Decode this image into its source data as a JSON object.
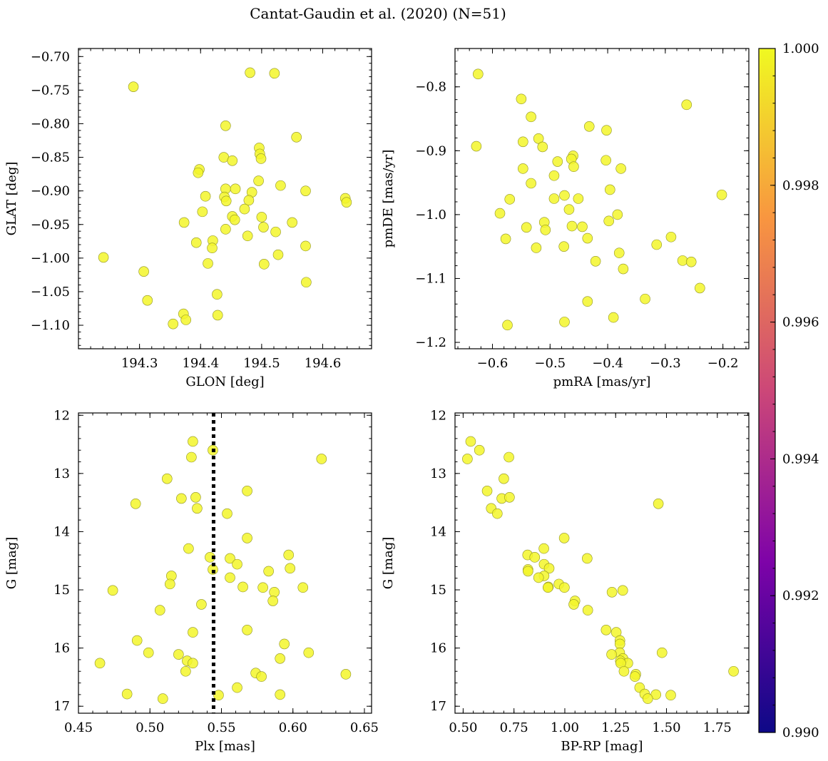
{
  "figure": {
    "title": "Cantat-Gaudin et al. (2020) (N=51)"
  },
  "colorbar": {
    "range": [
      0.99,
      1.0
    ],
    "ticks": [
      0.99,
      0.992,
      0.994,
      0.996,
      0.998,
      1.0
    ],
    "tick_labels": [
      "0.990",
      "0.992",
      "0.994",
      "0.996",
      "0.998",
      "1.000"
    ],
    "colormap": [
      "#0d0887",
      "#7e03a8",
      "#cc4778",
      "#f89540",
      "#f0f921"
    ],
    "point_color": "#f3f62a"
  },
  "chart_data": [
    {
      "type": "scatter",
      "xlabel": "GLON [deg]",
      "ylabel": "GLAT [deg]",
      "xlim": [
        194.2,
        194.68
      ],
      "ylim": [
        -1.135,
        -0.688
      ],
      "xticks": [
        194.3,
        194.4,
        194.5,
        194.6
      ],
      "xtick_labels": [
        "194.3",
        "194.4",
        "194.5",
        "194.6"
      ],
      "yticks": [
        -0.7,
        -0.75,
        -0.8,
        -0.85,
        -0.9,
        -0.95,
        -1.0,
        -1.05,
        -1.1
      ],
      "ytick_labels": [
        "−0.70",
        "−0.75",
        "−0.80",
        "−0.85",
        "−0.90",
        "−0.95",
        "−1.00",
        "−1.05",
        "−1.10"
      ],
      "points": [
        [
          194.481,
          -0.724
        ],
        [
          194.521,
          -0.725
        ],
        [
          194.29,
          -0.745
        ],
        [
          194.441,
          -0.803
        ],
        [
          194.557,
          -0.82
        ],
        [
          194.496,
          -0.836
        ],
        [
          194.497,
          -0.845
        ],
        [
          194.438,
          -0.85
        ],
        [
          194.499,
          -0.852
        ],
        [
          194.452,
          -0.855
        ],
        [
          194.398,
          -0.868
        ],
        [
          194.396,
          -0.873
        ],
        [
          194.531,
          -0.892
        ],
        [
          194.495,
          -0.885
        ],
        [
          194.441,
          -0.897
        ],
        [
          194.457,
          -0.897
        ],
        [
          194.572,
          -0.9
        ],
        [
          194.484,
          -0.902
        ],
        [
          194.408,
          -0.908
        ],
        [
          194.439,
          -0.909
        ],
        [
          194.637,
          -0.911
        ],
        [
          194.479,
          -0.914
        ],
        [
          194.442,
          -0.915
        ],
        [
          194.639,
          -0.917
        ],
        [
          194.472,
          -0.927
        ],
        [
          194.403,
          -0.931
        ],
        [
          194.452,
          -0.938
        ],
        [
          194.5,
          -0.939
        ],
        [
          194.456,
          -0.943
        ],
        [
          194.373,
          -0.947
        ],
        [
          194.55,
          -0.947
        ],
        [
          194.503,
          -0.954
        ],
        [
          194.441,
          -0.957
        ],
        [
          194.523,
          -0.961
        ],
        [
          194.477,
          -0.967
        ],
        [
          194.42,
          -0.974
        ],
        [
          194.393,
          -0.977
        ],
        [
          194.572,
          -0.982
        ],
        [
          194.419,
          -0.985
        ],
        [
          194.241,
          -0.999
        ],
        [
          194.527,
          -0.995
        ],
        [
          194.412,
          -1.008
        ],
        [
          194.504,
          -1.009
        ],
        [
          194.307,
          -1.02
        ],
        [
          194.573,
          -1.036
        ],
        [
          194.427,
          -1.054
        ],
        [
          194.313,
          -1.063
        ],
        [
          194.372,
          -1.083
        ],
        [
          194.428,
          -1.085
        ],
        [
          194.376,
          -1.092
        ],
        [
          194.355,
          -1.098
        ]
      ]
    },
    {
      "type": "scatter",
      "xlabel": "pmRA [mas/yr]",
      "ylabel": "pmDE [mas/yr]",
      "xlim": [
        -0.665,
        -0.155
      ],
      "ylim": [
        -1.21,
        -0.74
      ],
      "xticks": [
        -0.6,
        -0.5,
        -0.4,
        -0.3,
        -0.2
      ],
      "xtick_labels": [
        "−0.6",
        "−0.5",
        "−0.4",
        "−0.3",
        "−0.2"
      ],
      "yticks": [
        -0.8,
        -0.9,
        -1.0,
        -1.1,
        -1.2
      ],
      "ytick_labels": [
        "−0.8",
        "−0.9",
        "−1.0",
        "−1.1",
        "−1.2"
      ],
      "points": [
        [
          -0.625,
          -0.78
        ],
        [
          -0.55,
          -0.819
        ],
        [
          -0.263,
          -0.828
        ],
        [
          -0.533,
          -0.847
        ],
        [
          -0.432,
          -0.862
        ],
        [
          -0.402,
          -0.868
        ],
        [
          -0.52,
          -0.881
        ],
        [
          -0.547,
          -0.886
        ],
        [
          -0.628,
          -0.893
        ],
        [
          -0.513,
          -0.894
        ],
        [
          -0.46,
          -0.908
        ],
        [
          -0.463,
          -0.913
        ],
        [
          -0.403,
          -0.915
        ],
        [
          -0.487,
          -0.917
        ],
        [
          -0.459,
          -0.925
        ],
        [
          -0.547,
          -0.928
        ],
        [
          -0.377,
          -0.928
        ],
        [
          -0.493,
          -0.939
        ],
        [
          -0.533,
          -0.951
        ],
        [
          -0.396,
          -0.961
        ],
        [
          -0.202,
          -0.969
        ],
        [
          -0.475,
          -0.97
        ],
        [
          -0.57,
          -0.976
        ],
        [
          -0.493,
          -0.975
        ],
        [
          -0.451,
          -0.975
        ],
        [
          -0.467,
          -0.992
        ],
        [
          -0.587,
          -0.998
        ],
        [
          -0.383,
          -1.0
        ],
        [
          -0.398,
          -1.01
        ],
        [
          -0.51,
          -1.012
        ],
        [
          -0.462,
          -1.018
        ],
        [
          -0.541,
          -1.02
        ],
        [
          -0.444,
          -1.019
        ],
        [
          -0.508,
          -1.024
        ],
        [
          -0.577,
          -1.038
        ],
        [
          -0.435,
          -1.037
        ],
        [
          -0.29,
          -1.035
        ],
        [
          -0.315,
          -1.047
        ],
        [
          -0.476,
          -1.05
        ],
        [
          -0.524,
          -1.052
        ],
        [
          -0.38,
          -1.06
        ],
        [
          -0.421,
          -1.073
        ],
        [
          -0.27,
          -1.072
        ],
        [
          -0.255,
          -1.074
        ],
        [
          -0.373,
          -1.085
        ],
        [
          -0.24,
          -1.115
        ],
        [
          -0.335,
          -1.132
        ],
        [
          -0.435,
          -1.136
        ],
        [
          -0.39,
          -1.161
        ],
        [
          -0.475,
          -1.168
        ],
        [
          -0.574,
          -1.173
        ]
      ]
    },
    {
      "type": "scatter",
      "xlabel": "Plx [mas]",
      "ylabel": "G [mag]",
      "xlim": [
        0.45,
        0.655
      ],
      "ylim": [
        17.12,
        11.96
      ],
      "y_inverted": true,
      "xticks": [
        0.45,
        0.5,
        0.55,
        0.6,
        0.65
      ],
      "xtick_labels": [
        "0.45",
        "0.50",
        "0.55",
        "0.60",
        "0.65"
      ],
      "yticks": [
        12,
        13,
        14,
        15,
        16,
        17
      ],
      "ytick_labels": [
        "12",
        "13",
        "14",
        "15",
        "16",
        "17"
      ],
      "vline": 0.5445,
      "points": [
        [
          0.53,
          12.45
        ],
        [
          0.544,
          12.6
        ],
        [
          0.529,
          12.72
        ],
        [
          0.62,
          12.75
        ],
        [
          0.512,
          13.09
        ],
        [
          0.568,
          13.3
        ],
        [
          0.522,
          13.43
        ],
        [
          0.532,
          13.41
        ],
        [
          0.49,
          13.52
        ],
        [
          0.533,
          13.6
        ],
        [
          0.554,
          13.69
        ],
        [
          0.568,
          14.11
        ],
        [
          0.527,
          14.29
        ],
        [
          0.597,
          14.4
        ],
        [
          0.542,
          14.44
        ],
        [
          0.556,
          14.46
        ],
        [
          0.561,
          14.56
        ],
        [
          0.544,
          14.65
        ],
        [
          0.598,
          14.63
        ],
        [
          0.583,
          14.68
        ],
        [
          0.515,
          14.76
        ],
        [
          0.556,
          14.79
        ],
        [
          0.514,
          14.9
        ],
        [
          0.565,
          14.95
        ],
        [
          0.579,
          14.96
        ],
        [
          0.607,
          14.96
        ],
        [
          0.474,
          15.01
        ],
        [
          0.587,
          15.04
        ],
        [
          0.586,
          15.19
        ],
        [
          0.536,
          15.25
        ],
        [
          0.507,
          15.35
        ],
        [
          0.568,
          15.69
        ],
        [
          0.53,
          15.73
        ],
        [
          0.491,
          15.87
        ],
        [
          0.594,
          15.93
        ],
        [
          0.499,
          16.08
        ],
        [
          0.611,
          16.08
        ],
        [
          0.52,
          16.11
        ],
        [
          0.591,
          16.18
        ],
        [
          0.526,
          16.22
        ],
        [
          0.465,
          16.26
        ],
        [
          0.53,
          16.26
        ],
        [
          0.525,
          16.4
        ],
        [
          0.574,
          16.43
        ],
        [
          0.637,
          16.45
        ],
        [
          0.578,
          16.49
        ],
        [
          0.561,
          16.68
        ],
        [
          0.484,
          16.79
        ],
        [
          0.591,
          16.8
        ],
        [
          0.548,
          16.81
        ],
        [
          0.509,
          16.87
        ]
      ]
    },
    {
      "type": "scatter",
      "xlabel": "BP-RP [mag]",
      "ylabel": "G [mag]",
      "xlim": [
        0.46,
        1.905
      ],
      "ylim": [
        17.12,
        11.96
      ],
      "y_inverted": true,
      "xticks": [
        0.5,
        0.75,
        1.0,
        1.25,
        1.5,
        1.75
      ],
      "xtick_labels": [
        "0.50",
        "0.75",
        "1.00",
        "1.25",
        "1.50",
        "1.75"
      ],
      "yticks": [
        12,
        13,
        14,
        15,
        16,
        17
      ],
      "ytick_labels": [
        "12",
        "13",
        "14",
        "15",
        "16",
        "17"
      ],
      "points": [
        [
          0.537,
          12.45
        ],
        [
          0.58,
          12.6
        ],
        [
          0.725,
          12.72
        ],
        [
          0.521,
          12.75
        ],
        [
          0.7,
          13.09
        ],
        [
          0.618,
          13.3
        ],
        [
          0.69,
          13.43
        ],
        [
          0.728,
          13.41
        ],
        [
          1.46,
          13.52
        ],
        [
          0.638,
          13.6
        ],
        [
          0.668,
          13.69
        ],
        [
          0.997,
          14.11
        ],
        [
          0.897,
          14.29
        ],
        [
          0.817,
          14.4
        ],
        [
          0.852,
          14.44
        ],
        [
          1.11,
          14.46
        ],
        [
          0.898,
          14.56
        ],
        [
          0.819,
          14.65
        ],
        [
          0.923,
          14.63
        ],
        [
          0.819,
          14.68
        ],
        [
          0.898,
          14.76
        ],
        [
          0.871,
          14.79
        ],
        [
          0.971,
          14.9
        ],
        [
          0.919,
          14.95
        ],
        [
          0.917,
          14.96
        ],
        [
          0.998,
          14.96
        ],
        [
          1.285,
          15.01
        ],
        [
          1.232,
          15.04
        ],
        [
          1.05,
          15.19
        ],
        [
          1.044,
          15.25
        ],
        [
          1.113,
          15.35
        ],
        [
          1.203,
          15.69
        ],
        [
          1.253,
          15.73
        ],
        [
          1.271,
          15.87
        ],
        [
          1.271,
          15.93
        ],
        [
          1.27,
          16.08
        ],
        [
          1.478,
          16.08
        ],
        [
          1.23,
          16.11
        ],
        [
          1.286,
          16.18
        ],
        [
          1.273,
          16.22
        ],
        [
          1.31,
          16.26
        ],
        [
          1.275,
          16.26
        ],
        [
          1.291,
          16.4
        ],
        [
          1.83,
          16.4
        ],
        [
          1.349,
          16.45
        ],
        [
          1.345,
          16.49
        ],
        [
          1.368,
          16.68
        ],
        [
          1.393,
          16.79
        ],
        [
          1.448,
          16.8
        ],
        [
          1.521,
          16.81
        ],
        [
          1.408,
          16.87
        ]
      ]
    }
  ]
}
